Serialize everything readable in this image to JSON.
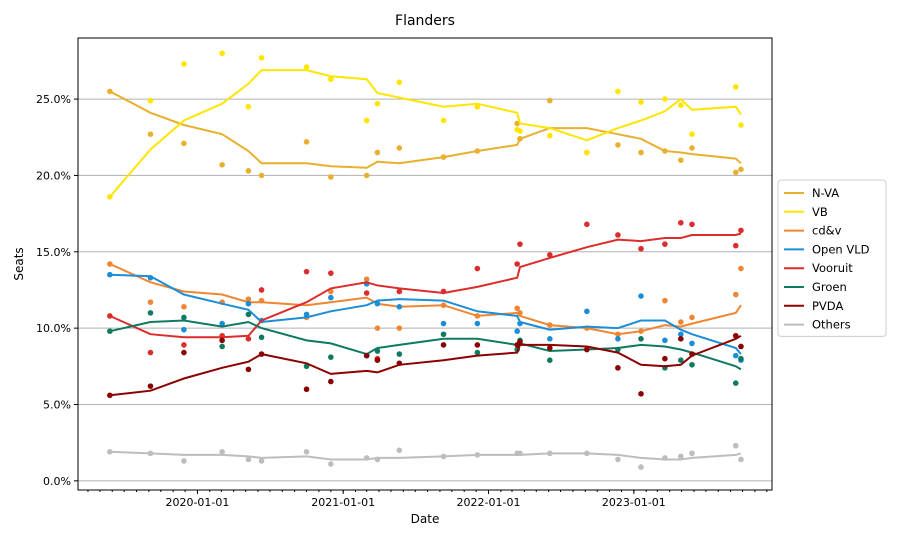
{
  "chart_data": {
    "type": "line",
    "title": "Flanders",
    "xlabel": "Date",
    "ylabel": "Seats",
    "xlim": [
      "2019-03-07",
      "2023-12-14"
    ],
    "ylim": [
      -0.6,
      29.0
    ],
    "grid": "horizontal",
    "legend_placement": "right-outside",
    "x_ticks": [
      "2020-01-01",
      "2021-01-01",
      "2022-01-01",
      "2023-01-01"
    ],
    "y_ticks": [
      0,
      5,
      10,
      15,
      20,
      25
    ],
    "y_tick_labels": [
      "0.0%",
      "5.0%",
      "10.0%",
      "15.0%",
      "20.0%",
      "25.0%"
    ],
    "dates": [
      "2019-05-26",
      "2019-09-05",
      "2019-11-28",
      "2020-03-03",
      "2020-05-08",
      "2020-06-10",
      "2020-10-01",
      "2020-12-01",
      "2021-03-01",
      "2021-03-28",
      "2021-05-22",
      "2021-09-10",
      "2021-12-04",
      "2022-03-14",
      "2022-03-21",
      "2022-06-04",
      "2022-09-05",
      "2022-11-22",
      "2023-01-19",
      "2023-03-20",
      "2023-04-29",
      "2023-05-27",
      "2023-09-14",
      "2023-09-27"
    ],
    "series": [
      {
        "name": "N-VA",
        "color": "#e8b02e",
        "polls": [
          25.5,
          22.7,
          22.1,
          20.7,
          20.3,
          20.0,
          22.2,
          19.9,
          20.0,
          21.5,
          21.8,
          21.2,
          21.6,
          23.4,
          22.4,
          24.9,
          21.5,
          22.0,
          21.5,
          21.6,
          21.0,
          21.8,
          20.2,
          20.4
        ],
        "trend": [
          25.5,
          24.1,
          23.3,
          22.7,
          21.6,
          20.8,
          20.8,
          20.6,
          20.5,
          20.9,
          20.8,
          21.2,
          21.6,
          22.0,
          22.4,
          23.1,
          23.1,
          22.7,
          22.4,
          21.6,
          21.5,
          21.4,
          21.1,
          20.8
        ]
      },
      {
        "name": "VB",
        "color": "#ffe500",
        "polls": [
          18.6,
          24.9,
          27.3,
          28.0,
          24.5,
          27.7,
          27.1,
          26.3,
          23.6,
          24.7,
          26.1,
          23.6,
          24.5,
          23.0,
          22.9,
          22.6,
          21.5,
          25.5,
          24.8,
          25.0,
          24.6,
          22.7,
          25.8,
          23.3
        ],
        "trend": [
          18.6,
          21.7,
          23.6,
          24.7,
          26.0,
          26.9,
          26.9,
          26.5,
          26.3,
          25.4,
          25.1,
          24.5,
          24.7,
          24.1,
          23.4,
          23.1,
          22.3,
          23.1,
          23.6,
          24.2,
          25.0,
          24.3,
          24.5,
          24.0
        ]
      },
      {
        "name": "cd&v",
        "color": "#f08532",
        "polls": [
          14.2,
          11.7,
          11.4,
          11.7,
          11.9,
          11.8,
          10.7,
          12.4,
          13.2,
          10.0,
          10.0,
          11.5,
          10.8,
          11.3,
          11.0,
          10.2,
          10.0,
          9.6,
          9.8,
          11.8,
          10.4,
          10.7,
          12.2,
          13.9
        ],
        "trend": [
          14.2,
          13.0,
          12.4,
          12.2,
          11.7,
          11.7,
          11.5,
          11.7,
          12.0,
          11.6,
          11.4,
          11.5,
          10.8,
          11.0,
          10.8,
          10.2,
          10.0,
          9.6,
          9.8,
          10.2,
          10.1,
          10.3,
          11.0,
          11.5
        ]
      },
      {
        "name": "Open VLD",
        "color": "#1a8ed6",
        "polls": [
          13.5,
          13.3,
          9.9,
          10.3,
          11.6,
          10.5,
          10.9,
          12.0,
          12.9,
          11.6,
          11.4,
          10.3,
          10.3,
          9.8,
          10.3,
          9.3,
          11.1,
          9.3,
          12.1,
          9.2,
          9.6,
          9.0,
          8.2,
          7.9
        ],
        "trend": [
          13.5,
          13.4,
          12.2,
          11.6,
          11.2,
          10.4,
          10.7,
          11.1,
          11.5,
          11.8,
          11.9,
          11.8,
          11.1,
          10.8,
          10.4,
          9.9,
          10.1,
          10.0,
          10.5,
          10.5,
          9.9,
          9.6,
          8.7,
          8.3
        ]
      },
      {
        "name": "Vooruit",
        "color": "#dc2c2c",
        "polls": [
          10.8,
          8.4,
          8.9,
          9.5,
          9.3,
          12.5,
          13.7,
          13.6,
          12.3,
          8.0,
          12.4,
          12.4,
          13.9,
          14.2,
          15.5,
          14.8,
          16.8,
          16.1,
          15.2,
          15.5,
          16.9,
          16.8,
          15.4,
          16.4
        ],
        "trend": [
          10.8,
          9.6,
          9.4,
          9.4,
          9.5,
          10.5,
          11.7,
          12.6,
          13.0,
          12.8,
          12.6,
          12.3,
          12.7,
          13.3,
          14.0,
          14.6,
          15.3,
          15.8,
          15.7,
          15.9,
          15.9,
          16.1,
          16.1,
          16.2
        ]
      },
      {
        "name": "Groen",
        "color": "#0e7a60",
        "polls": [
          9.8,
          11.0,
          10.7,
          8.8,
          10.9,
          9.4,
          7.5,
          8.1,
          8.2,
          8.5,
          8.3,
          9.6,
          8.4,
          8.6,
          9.2,
          7.9,
          8.6,
          8.6,
          9.3,
          7.4,
          7.9,
          7.6,
          6.4,
          8.0
        ],
        "trend": [
          9.8,
          10.4,
          10.5,
          10.1,
          10.4,
          10.0,
          9.2,
          9.0,
          8.3,
          8.7,
          8.9,
          9.3,
          9.3,
          8.9,
          9.0,
          8.5,
          8.6,
          8.7,
          8.9,
          8.8,
          8.6,
          8.4,
          7.5,
          7.3
        ]
      },
      {
        "name": "PVDA",
        "color": "#8b0000",
        "polls": [
          5.6,
          6.2,
          8.4,
          9.2,
          7.3,
          8.3,
          6.0,
          6.5,
          8.2,
          7.9,
          7.7,
          8.9,
          8.9,
          8.9,
          9.1,
          8.7,
          8.6,
          7.4,
          5.7,
          8.0,
          9.3,
          8.3,
          9.5,
          8.8
        ],
        "trend": [
          5.6,
          5.9,
          6.7,
          7.4,
          7.8,
          8.3,
          7.7,
          7.0,
          7.2,
          7.1,
          7.6,
          7.9,
          8.2,
          8.4,
          8.9,
          8.9,
          8.8,
          8.4,
          7.6,
          7.5,
          7.6,
          8.2,
          9.3,
          9.5
        ]
      },
      {
        "name": "Others",
        "color": "#bdbdbd",
        "polls": [
          1.9,
          1.8,
          1.3,
          1.9,
          1.4,
          1.3,
          1.9,
          1.1,
          1.5,
          1.4,
          2.0,
          1.6,
          1.7,
          1.8,
          1.8,
          1.8,
          1.8,
          1.4,
          0.9,
          1.5,
          1.6,
          1.8,
          2.3,
          1.4
        ],
        "trend": [
          1.9,
          1.8,
          1.7,
          1.7,
          1.6,
          1.5,
          1.6,
          1.4,
          1.4,
          1.5,
          1.5,
          1.6,
          1.7,
          1.7,
          1.7,
          1.8,
          1.8,
          1.7,
          1.5,
          1.4,
          1.4,
          1.5,
          1.7,
          1.8
        ]
      }
    ]
  }
}
